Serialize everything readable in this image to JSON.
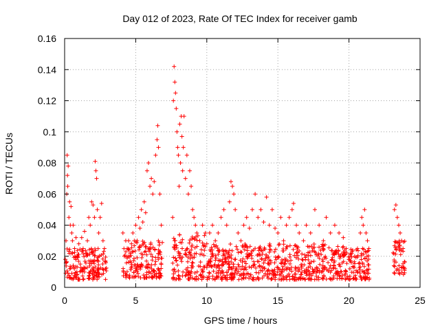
{
  "chart_data": {
    "type": "scatter",
    "title": "Day 012 of 2023, Rate Of TEC Index for receiver gamb",
    "xlabel": "GPS time / hours",
    "ylabel": "ROTI / TECUs",
    "xlim": [
      0,
      25
    ],
    "ylim": [
      0,
      0.16
    ],
    "x_ticks": [
      0,
      5,
      10,
      15,
      20,
      25
    ],
    "x_tick_labels": [
      "0",
      "5",
      "10",
      "15",
      "20",
      "25"
    ],
    "y_ticks": [
      0,
      0.02,
      0.04,
      0.06,
      0.08,
      0.1,
      0.12,
      0.14,
      0.16
    ],
    "y_tick_labels": [
      "0",
      "0.02",
      "0.04",
      "0.06",
      "0.08",
      "0.1",
      "0.12",
      "0.14",
      "0.16"
    ],
    "grid": true,
    "marker": "+",
    "marker_color": "#ff0000",
    "series": [
      {
        "name": "ROTI",
        "points": [
          [
            0.05,
            0.018
          ],
          [
            0.1,
            0.03
          ],
          [
            0.15,
            0.06
          ],
          [
            0.18,
            0.085
          ],
          [
            0.2,
            0.072
          ],
          [
            0.22,
            0.065
          ],
          [
            0.25,
            0.078
          ],
          [
            0.3,
            0.045
          ],
          [
            0.35,
            0.055
          ],
          [
            0.4,
            0.04
          ],
          [
            0.45,
            0.052
          ],
          [
            0.5,
            0.035
          ],
          [
            0.55,
            0.03
          ],
          [
            0.6,
            0.04
          ],
          [
            0.7,
            0.025
          ],
          [
            0.8,
            0.032
          ],
          [
            0.9,
            0.02
          ],
          [
            1.0,
            0.028
          ],
          [
            1.1,
            0.015
          ],
          [
            1.2,
            0.032
          ],
          [
            1.3,
            0.025
          ],
          [
            1.4,
            0.036
          ],
          [
            1.5,
            0.022
          ],
          [
            1.6,
            0.03
          ],
          [
            1.7,
            0.045
          ],
          [
            1.8,
            0.04
          ],
          [
            1.9,
            0.055
          ],
          [
            2.0,
            0.053
          ],
          [
            2.1,
            0.045
          ],
          [
            2.15,
            0.081
          ],
          [
            2.2,
            0.075
          ],
          [
            2.25,
            0.07
          ],
          [
            2.3,
            0.05
          ],
          [
            2.4,
            0.035
          ],
          [
            2.5,
            0.045
          ],
          [
            2.6,
            0.054
          ],
          [
            2.7,
            0.03
          ],
          [
            2.8,
            0.025
          ],
          [
            4.1,
            0.035
          ],
          [
            4.2,
            0.02
          ],
          [
            4.3,
            0.03
          ],
          [
            4.4,
            0.025
          ],
          [
            4.5,
            0.03
          ],
          [
            4.6,
            0.022
          ],
          [
            4.7,
            0.028
          ],
          [
            4.8,
            0.035
          ],
          [
            4.9,
            0.03
          ],
          [
            5.0,
            0.04
          ],
          [
            5.1,
            0.03
          ],
          [
            5.2,
            0.045
          ],
          [
            5.3,
            0.038
          ],
          [
            5.4,
            0.05
          ],
          [
            5.5,
            0.042
          ],
          [
            5.6,
            0.055
          ],
          [
            5.7,
            0.048
          ],
          [
            5.8,
            0.075
          ],
          [
            5.9,
            0.08
          ],
          [
            6.0,
            0.065
          ],
          [
            6.1,
            0.07
          ],
          [
            6.2,
            0.06
          ],
          [
            6.3,
            0.068
          ],
          [
            6.4,
            0.085
          ],
          [
            6.5,
            0.095
          ],
          [
            6.55,
            0.104
          ],
          [
            6.6,
            0.09
          ],
          [
            6.7,
            0.06
          ],
          [
            6.8,
            0.04
          ],
          [
            7.6,
            0.045
          ],
          [
            7.65,
            0.12
          ],
          [
            7.7,
            0.142
          ],
          [
            7.75,
            0.132
          ],
          [
            7.8,
            0.125
          ],
          [
            7.85,
            0.115
          ],
          [
            7.9,
            0.1
          ],
          [
            7.95,
            0.09
          ],
          [
            8.0,
            0.085
          ],
          [
            8.05,
            0.065
          ],
          [
            8.1,
            0.105
          ],
          [
            8.15,
            0.08
          ],
          [
            8.2,
            0.11
          ],
          [
            8.25,
            0.097
          ],
          [
            8.3,
            0.075
          ],
          [
            8.35,
            0.09
          ],
          [
            8.4,
            0.11
          ],
          [
            8.5,
            0.07
          ],
          [
            8.6,
            0.085
          ],
          [
            8.7,
            0.06
          ],
          [
            8.8,
            0.075
          ],
          [
            8.9,
            0.065
          ],
          [
            9.0,
            0.05
          ],
          [
            9.1,
            0.045
          ],
          [
            9.2,
            0.04
          ],
          [
            9.3,
            0.035
          ],
          [
            9.5,
            0.03
          ],
          [
            9.7,
            0.04
          ],
          [
            9.9,
            0.035
          ],
          [
            10.0,
            0.028
          ],
          [
            10.2,
            0.035
          ],
          [
            10.4,
            0.04
          ],
          [
            10.6,
            0.03
          ],
          [
            10.8,
            0.035
          ],
          [
            11.0,
            0.045
          ],
          [
            11.2,
            0.05
          ],
          [
            11.4,
            0.04
          ],
          [
            11.6,
            0.055
          ],
          [
            11.7,
            0.068
          ],
          [
            11.8,
            0.065
          ],
          [
            11.9,
            0.06
          ],
          [
            12.0,
            0.05
          ],
          [
            12.2,
            0.035
          ],
          [
            12.4,
            0.03
          ],
          [
            12.6,
            0.04
          ],
          [
            12.8,
            0.045
          ],
          [
            13.0,
            0.038
          ],
          [
            13.2,
            0.05
          ],
          [
            13.4,
            0.06
          ],
          [
            13.6,
            0.045
          ],
          [
            13.8,
            0.05
          ],
          [
            14.0,
            0.042
          ],
          [
            14.2,
            0.058
          ],
          [
            14.4,
            0.04
          ],
          [
            14.6,
            0.05
          ],
          [
            14.8,
            0.038
          ],
          [
            15.0,
            0.035
          ],
          [
            15.2,
            0.045
          ],
          [
            15.4,
            0.03
          ],
          [
            15.6,
            0.04
          ],
          [
            15.8,
            0.045
          ],
          [
            16.0,
            0.05
          ],
          [
            16.1,
            0.054
          ],
          [
            16.3,
            0.04
          ],
          [
            16.5,
            0.035
          ],
          [
            16.8,
            0.03
          ],
          [
            17.0,
            0.04
          ],
          [
            17.3,
            0.035
          ],
          [
            17.6,
            0.05
          ],
          [
            17.9,
            0.04
          ],
          [
            18.2,
            0.03
          ],
          [
            18.4,
            0.045
          ],
          [
            18.7,
            0.035
          ],
          [
            19.0,
            0.04
          ],
          [
            19.3,
            0.035
          ],
          [
            19.6,
            0.032
          ],
          [
            19.8,
            0.025
          ],
          [
            20.0,
            0.018
          ],
          [
            20.2,
            0.022
          ],
          [
            20.4,
            0.02
          ],
          [
            20.6,
            0.025
          ],
          [
            20.8,
            0.035
          ],
          [
            20.9,
            0.045
          ],
          [
            21.0,
            0.04
          ],
          [
            21.1,
            0.05
          ],
          [
            21.2,
            0.035
          ],
          [
            21.3,
            0.03
          ],
          [
            21.4,
            0.025
          ],
          [
            23.2,
            0.05
          ],
          [
            23.3,
            0.053
          ],
          [
            23.4,
            0.045
          ],
          [
            23.5,
            0.04
          ],
          [
            23.6,
            0.035
          ],
          [
            23.7,
            0.03
          ],
          [
            23.8,
            0.025
          ]
        ],
        "dense_bands": [
          {
            "x": [
              0.05,
              2.95
            ],
            "y": [
              0.005,
              0.025
            ]
          },
          {
            "x": [
              4.1,
              6.9
            ],
            "y": [
              0.006,
              0.03
            ]
          },
          {
            "x": [
              7.6,
              9.9
            ],
            "y": [
              0.005,
              0.035
            ]
          },
          {
            "x": [
              10.0,
              19.9
            ],
            "y": [
              0.005,
              0.028
            ]
          },
          {
            "x": [
              19.95,
              21.45
            ],
            "y": [
              0.005,
              0.025
            ]
          },
          {
            "x": [
              23.1,
              23.95
            ],
            "y": [
              0.008,
              0.03
            ]
          }
        ]
      }
    ]
  }
}
